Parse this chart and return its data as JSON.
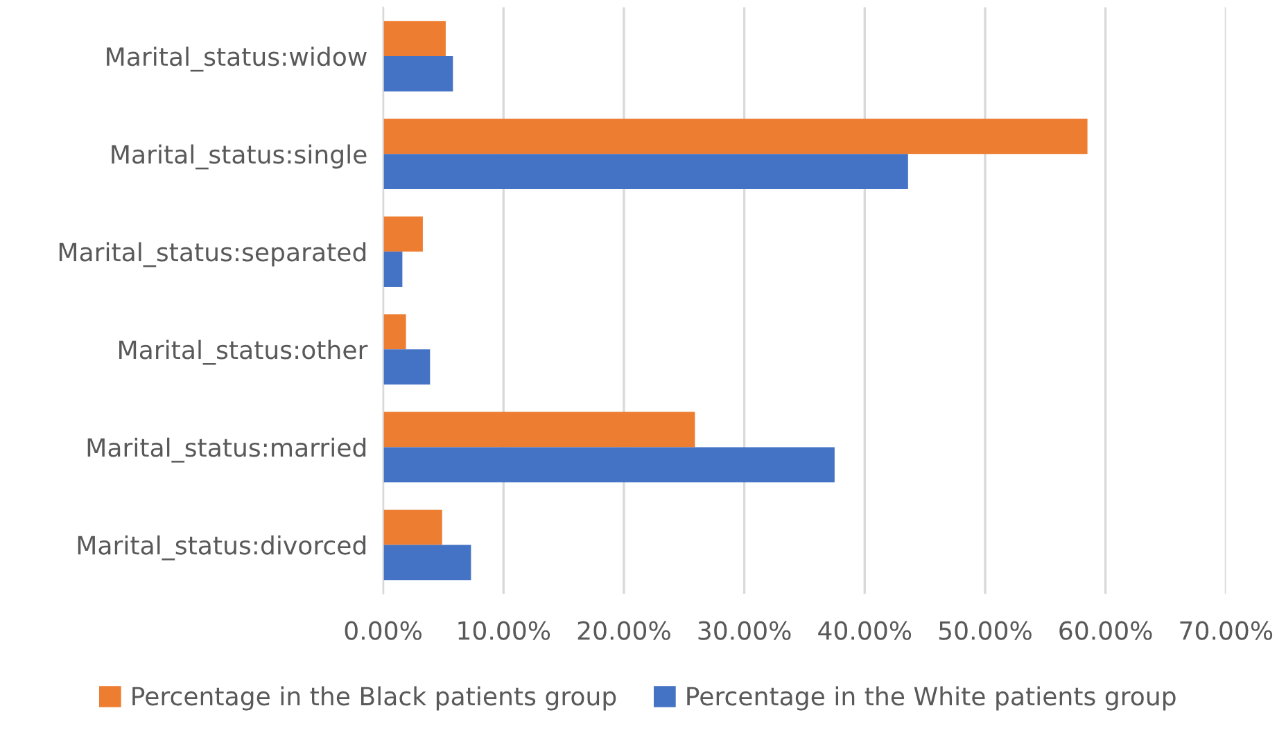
{
  "chart_data": {
    "type": "bar",
    "orientation": "horizontal",
    "categories": [
      "Marital_status:widow",
      "Marital_status:single",
      "Marital_status:separated",
      "Marital_status:other",
      "Marital_status:married",
      "Marital_status:divorced"
    ],
    "series": [
      {
        "name": "Percentage in the Black patients group",
        "color": "#ed7d31",
        "values": [
          5.2,
          58.5,
          3.3,
          1.9,
          25.9,
          4.9
        ]
      },
      {
        "name": "Percentage in the White patients group",
        "color": "#4472c4",
        "values": [
          5.8,
          43.6,
          1.6,
          3.9,
          37.5,
          7.3
        ]
      }
    ],
    "xlim": [
      0,
      70
    ],
    "xticks": [
      {
        "value": 0,
        "label": "0.00%"
      },
      {
        "value": 10,
        "label": "10.00%"
      },
      {
        "value": 20,
        "label": "20.00%"
      },
      {
        "value": 30,
        "label": "30.00%"
      },
      {
        "value": 40,
        "label": "40.00%"
      },
      {
        "value": 50,
        "label": "50.00%"
      },
      {
        "value": 60,
        "label": "60.00%"
      },
      {
        "value": 70,
        "label": "70.00%"
      }
    ],
    "grid": "x",
    "legend": "bottom"
  }
}
